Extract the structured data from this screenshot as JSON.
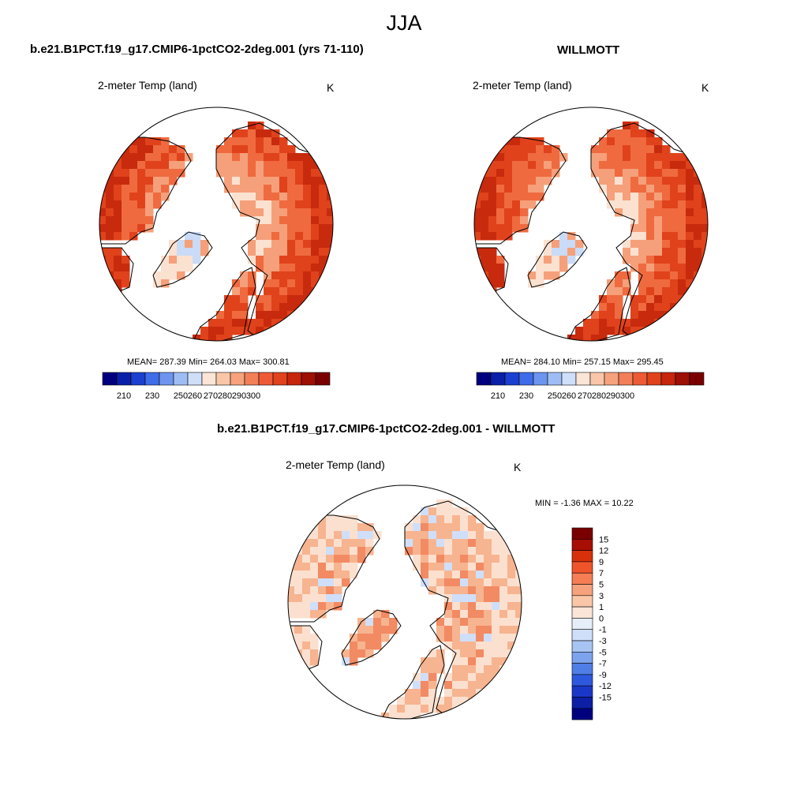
{
  "main_title": "JJA",
  "panels": [
    {
      "title": "b.e21.B1PCT.f19_g17.CMIP6-1pctCO2-2deg.001 (yrs 71-110)",
      "var_label": "2-meter Temp (land)",
      "units": "K",
      "stats": "MEAN= 287.39  Min= 264.03  Max= 300.81",
      "mean": 287.39,
      "min": 264.03,
      "max": 300.81
    },
    {
      "title": "WILLMOTT",
      "var_label": "2-meter Temp (land)",
      "units": "K",
      "stats": "MEAN= 284.10  Min= 257.15  Max= 295.45",
      "mean": 284.1,
      "min": 257.15,
      "max": 295.45
    },
    {
      "title": "b.e21.B1PCT.f19_g17.CMIP6-1pctCO2-2deg.001 - WILLMOTT",
      "var_label": "2-meter Temp (land)",
      "units": "K",
      "stats": "MIN =  -1.36 MAX =  10.22",
      "min": -1.36,
      "max": 10.22
    }
  ],
  "colorbar_abs": {
    "colors": [
      "#00007f",
      "#0a1fa8",
      "#1b3fd1",
      "#3f6ce8",
      "#6d95ef",
      "#9fbdf5",
      "#cfdffa",
      "#fbe5d6",
      "#f9c7a8",
      "#f6a27d",
      "#f27f58",
      "#ee5a35",
      "#e0421c",
      "#c7250c",
      "#9e0f04",
      "#7a0000"
    ],
    "tick_labels": [
      "210",
      "230",
      "250",
      "260",
      "270",
      "280",
      "290",
      "300"
    ]
  },
  "colorbar_diff": {
    "colors": [
      "#7a0000",
      "#a80e04",
      "#d9300c",
      "#f0542b",
      "#f57e55",
      "#f6a27d",
      "#f9c7a8",
      "#fbe5d6",
      "#e6eef9",
      "#cfdffa",
      "#a7c4f3",
      "#7ea3ee",
      "#4f7ee6",
      "#2e58dd",
      "#1a37c8",
      "#0c1fa5",
      "#00007f"
    ],
    "tick_labels": [
      "15",
      "12",
      "9",
      "7",
      "5",
      "3",
      "1",
      "0",
      "-1",
      "-3",
      "-5",
      "-7",
      "-9",
      "-12",
      "-15"
    ]
  },
  "field_colors": {
    "abs_low": "#c9dbf6",
    "abs_cool": "#fbe1d0",
    "abs_mid": "#f5a07a",
    "abs_warm": "#ef6a3f",
    "abs_hot": "#e0421c",
    "abs_hotter": "#c72a0d",
    "diff_light": "#fbe0cf",
    "diff_mid": "#f7b490",
    "diff_warm": "#f28a63",
    "diff_neg": "#cfdffa"
  }
}
